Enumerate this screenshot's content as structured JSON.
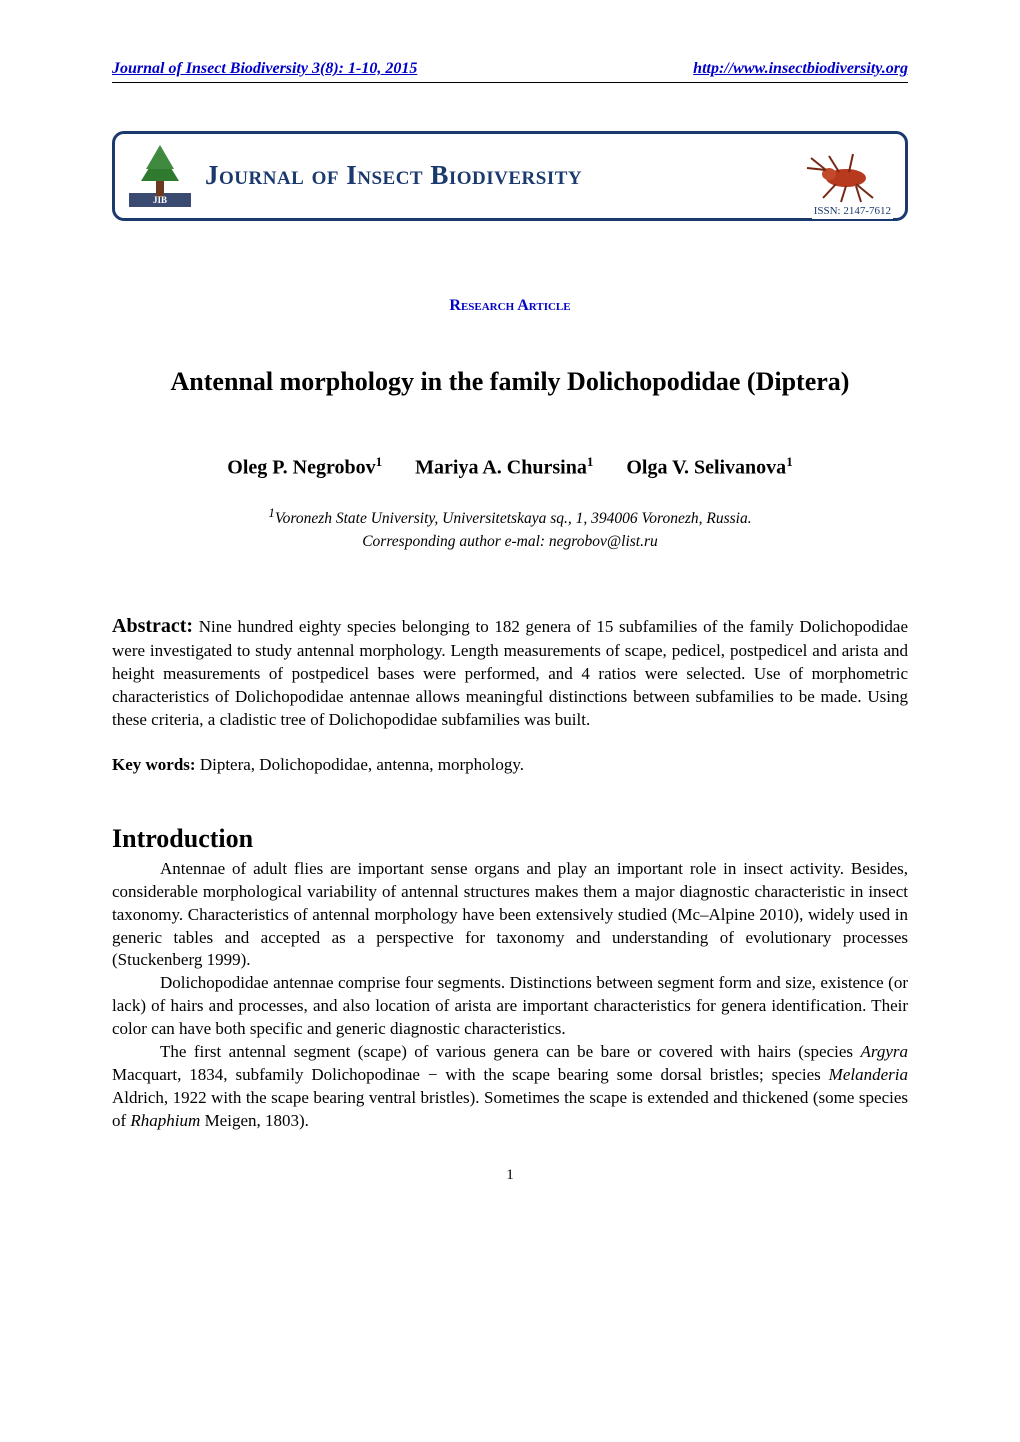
{
  "header": {
    "left": "Journal of Insect Biodiversity 3(8): 1-10, 2015",
    "right": "http://www.insectbiodiversity.org",
    "underline_color": "#0000c8"
  },
  "logo": {
    "title_text": "Journal of Insect Biodiversity",
    "title_color": "#1a3a6e",
    "border_color": "#1a3a6e",
    "issn_text": "ISSN: 2147-7612"
  },
  "section_type": "Research Article",
  "article_title": "Antennal morphology in the family Dolichopodidae (Diptera)",
  "authors": [
    {
      "name": "Oleg P. Negrobov",
      "sup": "1"
    },
    {
      "name": "Mariya A. Chursina",
      "sup": "1"
    },
    {
      "name": "Olga V. Selivanova",
      "sup": "1"
    }
  ],
  "affiliation": {
    "sup": "1",
    "text": "Voronezh State University, Universitetskaya sq., 1, 394006 Voronezh, Russia."
  },
  "corresponding": "Corresponding author e-mal: negrobov@list.ru",
  "abstract": {
    "label": "Abstract:",
    "text": "Nine hundred eighty species belonging to 182 genera of 15 subfamilies of the family Dolichopodidae were investigated to study antennal morphology. Length measurements of scape, pedicel, postpedicel and arista and height measurements of postpedicel bases were performed, and 4 ratios were selected. Use of morphometric characteristics of Dolichopodidae antennae allows meaningful distinctions between subfamilies to be made. Using these criteria, a cladistic tree of Dolichopodidae subfamilies was built."
  },
  "keywords": {
    "label": "Key words:",
    "text": "Diptera, Dolichopodidae, antenna, morphology."
  },
  "introduction": {
    "heading": "Introduction",
    "paragraphs": [
      {
        "pieces": [
          {
            "t": "Antennae of adult flies are important sense organs and play an important role in insect activity. Besides, considerable morphological variability of antennal structures makes them a major diagnostic characteristic in insect taxonomy. Characteristics of antennal morphology have been extensively studied (Mc–Alpine 2010), widely used in generic tables and accepted as a perspective for taxonomy and understanding of evolutionary processes (Stuckenberg 1999)."
          }
        ]
      },
      {
        "pieces": [
          {
            "t": "Dolichopodidae antennae comprise four segments. Distinctions between segment form and size, existence (or lack) of hairs and processes, and also location of arista are important characteristics for genera identification. Their color can have both specific and generic diagnostic characteristics."
          }
        ]
      },
      {
        "pieces": [
          {
            "t": "The first antennal segment (scape) of various genera can be bare or covered with hairs (species "
          },
          {
            "t": "Argyra",
            "italic": true
          },
          {
            "t": " Macquart, 1834, subfamily Dolichopodinae − with the scape bearing some dorsal bristles; species "
          },
          {
            "t": "Melanderia",
            "italic": true
          },
          {
            "t": " Aldrich, 1922 with the scape bearing ventral bristles). Sometimes the scape is extended and thickened (some species of "
          },
          {
            "t": "Rhaphium",
            "italic": true
          },
          {
            "t": " Meigen, 1803)."
          }
        ]
      }
    ]
  },
  "page_number": "1",
  "fonts": {
    "body_family": "Times New Roman",
    "body_size_pt": 12,
    "title_size_pt": 18,
    "heading_size_pt": 18,
    "author_size_pt": 14
  },
  "colors": {
    "text": "#000000",
    "link_blue": "#0000c8",
    "banner_navy": "#1a3a6e",
    "background": "#ffffff"
  },
  "tree_icon": {
    "trunk_color": "#6b3a1e",
    "foliage_color": "#2f7a2f",
    "bottom_color": "#3a4a70",
    "jib_text": "JIB"
  },
  "insect_icon": {
    "body_color": "#b83a1e",
    "line_color": "#782614"
  }
}
